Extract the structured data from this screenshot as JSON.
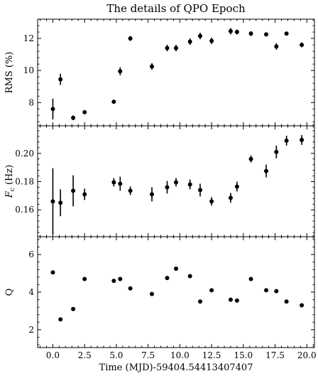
{
  "chart_data": {
    "type": "scatter",
    "title": "The details of QPO Epoch",
    "xlabel": "Time (MJD)-59404.54413407407",
    "xlim": [
      -1.2,
      20.6
    ],
    "xticks": [
      0.0,
      2.5,
      5.0,
      7.5,
      10.0,
      12.5,
      15.0,
      17.5,
      20.0
    ],
    "xtick_labels": [
      "0.0",
      "2.5",
      "5.0",
      "7.5",
      "10.0",
      "12.5",
      "15.0",
      "17.5",
      "20.0"
    ],
    "panels": [
      {
        "ylabel": "RMS (%)",
        "ylim": [
          6.55,
          13.2
        ],
        "yticks": [
          8,
          10,
          12
        ],
        "ytick_labels": [
          "8",
          "10",
          "12"
        ],
        "series": [
          {
            "x": [
              0.0,
              0.6,
              1.6,
              2.5,
              4.8,
              5.3,
              6.1,
              7.8,
              9.0,
              9.7,
              10.8,
              11.6,
              12.5,
              14.0,
              14.5,
              15.6,
              16.8,
              17.6,
              18.4,
              19.6
            ],
            "y": [
              7.6,
              9.45,
              7.05,
              7.4,
              8.05,
              9.95,
              12.0,
              10.25,
              11.4,
              11.4,
              11.8,
              12.15,
              11.85,
              12.45,
              12.4,
              12.3,
              12.25,
              11.5,
              12.3,
              11.6
            ],
            "yerr": [
              0.65,
              0.35,
              0.15,
              0.1,
              0.1,
              0.25,
              0.15,
              0.2,
              0.2,
              0.2,
              0.2,
              0.2,
              0.2,
              0.2,
              0.15,
              0.15,
              0.1,
              0.2,
              0.1,
              0.15
            ]
          }
        ]
      },
      {
        "ylabel": "F_c (Hz)",
        "ylabel_main": "F",
        "ylabel_sub": "c",
        "ylabel_unit": " (Hz)",
        "ylim": [
          0.141,
          0.2195
        ],
        "yticks": [
          0.16,
          0.18,
          0.2
        ],
        "ytick_labels": [
          "0.16",
          "0.18",
          "0.20"
        ],
        "series": [
          {
            "x": [
              0.0,
              0.6,
              1.6,
              2.5,
              4.8,
              5.3,
              6.1,
              7.8,
              9.0,
              9.7,
              10.8,
              11.6,
              12.5,
              14.0,
              14.5,
              15.6,
              16.8,
              17.6,
              18.4,
              19.6
            ],
            "y": [
              0.166,
              0.165,
              0.1735,
              0.171,
              0.1795,
              0.1785,
              0.1735,
              0.171,
              0.176,
              0.1795,
              0.178,
              0.174,
              0.166,
              0.1685,
              0.1765,
              0.196,
              0.1875,
              0.201,
              0.209,
              0.2095
            ],
            "yerr": [
              0.0235,
              0.0095,
              0.011,
              0.004,
              0.003,
              0.005,
              0.003,
              0.005,
              0.0045,
              0.003,
              0.0035,
              0.0045,
              0.003,
              0.0035,
              0.0035,
              0.0025,
              0.0045,
              0.0045,
              0.0035,
              0.0035
            ]
          }
        ]
      },
      {
        "ylabel": "Q",
        "ylim": [
          1.05,
          6.95
        ],
        "yticks": [
          2,
          4,
          6
        ],
        "ytick_labels": [
          "2",
          "4",
          "6"
        ],
        "series": [
          {
            "x": [
              0.0,
              0.6,
              1.6,
              2.5,
              4.8,
              5.3,
              6.1,
              7.8,
              9.0,
              9.7,
              10.8,
              11.6,
              12.5,
              14.0,
              14.5,
              15.6,
              16.8,
              17.6,
              18.4,
              19.6
            ],
            "y": [
              5.05,
              2.55,
              3.1,
              4.7,
              4.6,
              4.7,
              4.2,
              3.9,
              4.75,
              5.25,
              4.85,
              3.5,
              4.1,
              3.6,
              3.55,
              4.7,
              4.1,
              4.05,
              3.5,
              3.3
            ]
          }
        ]
      }
    ]
  }
}
